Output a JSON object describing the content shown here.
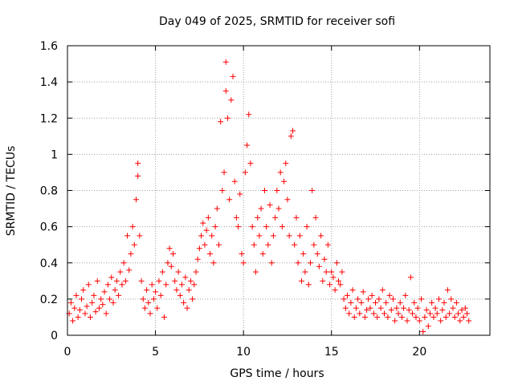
{
  "chart_data": {
    "type": "scatter",
    "title": "Day 049 of 2025, SRMTID for receiver sofi",
    "xlabel": "GPS time / hours",
    "ylabel": "SRMTID / TECUs",
    "xlim": [
      0,
      24
    ],
    "ylim": [
      0,
      1.6
    ],
    "xticks": [
      0,
      5,
      10,
      15,
      20
    ],
    "yticks": [
      0,
      0.2,
      0.4,
      0.6,
      0.8,
      1,
      1.2,
      1.4,
      1.6
    ],
    "xtick_labels": [
      "0",
      "5",
      "10",
      "15",
      "20"
    ],
    "ytick_labels": [
      "0",
      "0.2",
      "0.4",
      "0.6",
      "0.8",
      "1",
      "1.2",
      "1.4",
      "1.6"
    ],
    "grid": true,
    "marker": "+",
    "color": "#ff0000",
    "series": [
      {
        "name": "SRMTID",
        "points": [
          [
            0.1,
            0.12
          ],
          [
            0.2,
            0.18
          ],
          [
            0.3,
            0.08
          ],
          [
            0.4,
            0.15
          ],
          [
            0.5,
            0.22
          ],
          [
            0.6,
            0.1
          ],
          [
            0.7,
            0.14
          ],
          [
            0.8,
            0.2
          ],
          [
            0.9,
            0.25
          ],
          [
            1.0,
            0.12
          ],
          [
            1.1,
            0.16
          ],
          [
            1.2,
            0.28
          ],
          [
            1.3,
            0.1
          ],
          [
            1.4,
            0.18
          ],
          [
            1.5,
            0.22
          ],
          [
            1.6,
            0.13
          ],
          [
            1.7,
            0.3
          ],
          [
            1.8,
            0.15
          ],
          [
            1.9,
            0.2
          ],
          [
            2.0,
            0.17
          ],
          [
            2.1,
            0.24
          ],
          [
            2.2,
            0.12
          ],
          [
            2.3,
            0.28
          ],
          [
            2.4,
            0.2
          ],
          [
            2.5,
            0.32
          ],
          [
            2.6,
            0.18
          ],
          [
            2.7,
            0.25
          ],
          [
            2.8,
            0.3
          ],
          [
            2.9,
            0.22
          ],
          [
            3.0,
            0.35
          ],
          [
            3.1,
            0.28
          ],
          [
            3.2,
            0.4
          ],
          [
            3.3,
            0.3
          ],
          [
            3.4,
            0.55
          ],
          [
            3.5,
            0.36
          ],
          [
            3.6,
            0.45
          ],
          [
            3.7,
            0.6
          ],
          [
            3.8,
            0.5
          ],
          [
            3.9,
            0.75
          ],
          [
            4.0,
            0.95
          ],
          [
            4.0,
            0.88
          ],
          [
            4.1,
            0.55
          ],
          [
            4.2,
            0.3
          ],
          [
            4.3,
            0.2
          ],
          [
            4.4,
            0.15
          ],
          [
            4.5,
            0.25
          ],
          [
            4.6,
            0.18
          ],
          [
            4.7,
            0.12
          ],
          [
            4.8,
            0.28
          ],
          [
            4.9,
            0.2
          ],
          [
            5.0,
            0.24
          ],
          [
            5.1,
            0.15
          ],
          [
            5.2,
            0.3
          ],
          [
            5.3,
            0.22
          ],
          [
            5.4,
            0.35
          ],
          [
            5.5,
            0.1
          ],
          [
            5.6,
            0.28
          ],
          [
            5.7,
            0.4
          ],
          [
            5.8,
            0.48
          ],
          [
            5.9,
            0.38
          ],
          [
            6.0,
            0.45
          ],
          [
            6.1,
            0.3
          ],
          [
            6.2,
            0.25
          ],
          [
            6.3,
            0.35
          ],
          [
            6.4,
            0.22
          ],
          [
            6.5,
            0.28
          ],
          [
            6.6,
            0.18
          ],
          [
            6.7,
            0.32
          ],
          [
            6.8,
            0.15
          ],
          [
            6.9,
            0.25
          ],
          [
            7.0,
            0.3
          ],
          [
            7.1,
            0.2
          ],
          [
            7.2,
            0.28
          ],
          [
            7.3,
            0.35
          ],
          [
            7.4,
            0.42
          ],
          [
            7.5,
            0.48
          ],
          [
            7.6,
            0.55
          ],
          [
            7.7,
            0.62
          ],
          [
            7.8,
            0.5
          ],
          [
            7.9,
            0.58
          ],
          [
            8.0,
            0.65
          ],
          [
            8.1,
            0.45
          ],
          [
            8.2,
            0.55
          ],
          [
            8.3,
            0.4
          ],
          [
            8.4,
            0.6
          ],
          [
            8.5,
            0.7
          ],
          [
            8.6,
            0.5
          ],
          [
            8.7,
            1.18
          ],
          [
            8.8,
            0.8
          ],
          [
            8.9,
            0.9
          ],
          [
            9.0,
            1.51
          ],
          [
            9.0,
            1.35
          ],
          [
            9.1,
            1.2
          ],
          [
            9.2,
            0.75
          ],
          [
            9.3,
            1.3
          ],
          [
            9.4,
            1.43
          ],
          [
            9.5,
            0.85
          ],
          [
            9.6,
            0.65
          ],
          [
            9.7,
            0.6
          ],
          [
            9.8,
            0.78
          ],
          [
            9.9,
            0.45
          ],
          [
            10.0,
            0.4
          ],
          [
            10.1,
            0.9
          ],
          [
            10.2,
            1.05
          ],
          [
            10.3,
            1.22
          ],
          [
            10.4,
            0.95
          ],
          [
            10.5,
            0.6
          ],
          [
            10.6,
            0.5
          ],
          [
            10.7,
            0.35
          ],
          [
            10.8,
            0.65
          ],
          [
            10.9,
            0.55
          ],
          [
            11.0,
            0.7
          ],
          [
            11.1,
            0.45
          ],
          [
            11.2,
            0.8
          ],
          [
            11.3,
            0.6
          ],
          [
            11.4,
            0.5
          ],
          [
            11.5,
            0.72
          ],
          [
            11.6,
            0.4
          ],
          [
            11.7,
            0.55
          ],
          [
            11.8,
            0.65
          ],
          [
            11.9,
            0.8
          ],
          [
            12.0,
            0.7
          ],
          [
            12.1,
            0.9
          ],
          [
            12.2,
            0.6
          ],
          [
            12.3,
            0.85
          ],
          [
            12.4,
            0.95
          ],
          [
            12.5,
            0.75
          ],
          [
            12.6,
            0.55
          ],
          [
            12.7,
            1.1
          ],
          [
            12.8,
            1.13
          ],
          [
            12.9,
            0.5
          ],
          [
            13.0,
            0.65
          ],
          [
            13.1,
            0.4
          ],
          [
            13.2,
            0.55
          ],
          [
            13.3,
            0.3
          ],
          [
            13.4,
            0.45
          ],
          [
            13.5,
            0.35
          ],
          [
            13.6,
            0.6
          ],
          [
            13.7,
            0.28
          ],
          [
            13.8,
            0.4
          ],
          [
            13.9,
            0.8
          ],
          [
            14.0,
            0.5
          ],
          [
            14.1,
            0.65
          ],
          [
            14.2,
            0.45
          ],
          [
            14.3,
            0.38
          ],
          [
            14.4,
            0.55
          ],
          [
            14.5,
            0.3
          ],
          [
            14.6,
            0.42
          ],
          [
            14.7,
            0.35
          ],
          [
            14.8,
            0.5
          ],
          [
            14.9,
            0.28
          ],
          [
            15.0,
            0.35
          ],
          [
            15.1,
            0.32
          ],
          [
            15.2,
            0.25
          ],
          [
            15.3,
            0.4
          ],
          [
            15.4,
            0.3
          ],
          [
            15.5,
            0.28
          ],
          [
            15.6,
            0.35
          ],
          [
            15.7,
            0.2
          ],
          [
            15.8,
            0.15
          ],
          [
            15.9,
            0.22
          ],
          [
            16.0,
            0.12
          ],
          [
            16.1,
            0.18
          ],
          [
            16.2,
            0.25
          ],
          [
            16.3,
            0.1
          ],
          [
            16.4,
            0.15
          ],
          [
            16.5,
            0.2
          ],
          [
            16.6,
            0.12
          ],
          [
            16.7,
            0.18
          ],
          [
            16.8,
            0.24
          ],
          [
            16.9,
            0.1
          ],
          [
            17.0,
            0.14
          ],
          [
            17.1,
            0.2
          ],
          [
            17.2,
            0.15
          ],
          [
            17.3,
            0.22
          ],
          [
            17.4,
            0.12
          ],
          [
            17.5,
            0.18
          ],
          [
            17.6,
            0.1
          ],
          [
            17.7,
            0.2
          ],
          [
            17.8,
            0.15
          ],
          [
            17.9,
            0.25
          ],
          [
            18.0,
            0.12
          ],
          [
            18.1,
            0.18
          ],
          [
            18.2,
            0.1
          ],
          [
            18.3,
            0.22
          ],
          [
            18.4,
            0.14
          ],
          [
            18.5,
            0.2
          ],
          [
            18.6,
            0.08
          ],
          [
            18.7,
            0.15
          ],
          [
            18.8,
            0.12
          ],
          [
            18.9,
            0.18
          ],
          [
            19.0,
            0.1
          ],
          [
            19.1,
            0.15
          ],
          [
            19.2,
            0.22
          ],
          [
            19.3,
            0.08
          ],
          [
            19.4,
            0.14
          ],
          [
            19.5,
            0.32
          ],
          [
            19.6,
            0.12
          ],
          [
            19.7,
            0.18
          ],
          [
            19.8,
            0.1
          ],
          [
            19.9,
            0.15
          ],
          [
            20.0,
            0.08
          ],
          [
            20.1,
            0.2
          ],
          [
            20.2,
            0.02
          ],
          [
            20.3,
            0.1
          ],
          [
            20.4,
            0.14
          ],
          [
            20.5,
            0.05
          ],
          [
            20.6,
            0.12
          ],
          [
            20.7,
            0.18
          ],
          [
            20.8,
            0.1
          ],
          [
            20.9,
            0.15
          ],
          [
            21.0,
            0.12
          ],
          [
            21.1,
            0.2
          ],
          [
            21.2,
            0.08
          ],
          [
            21.3,
            0.14
          ],
          [
            21.4,
            0.18
          ],
          [
            21.5,
            0.1
          ],
          [
            21.6,
            0.25
          ],
          [
            21.7,
            0.12
          ],
          [
            21.8,
            0.2
          ],
          [
            21.9,
            0.15
          ],
          [
            22.0,
            0.1
          ],
          [
            22.1,
            0.18
          ],
          [
            22.2,
            0.12
          ],
          [
            22.3,
            0.08
          ],
          [
            22.4,
            0.14
          ],
          [
            22.5,
            0.1
          ],
          [
            22.6,
            0.15
          ],
          [
            22.7,
            0.12
          ],
          [
            22.8,
            0.08
          ]
        ]
      }
    ]
  }
}
